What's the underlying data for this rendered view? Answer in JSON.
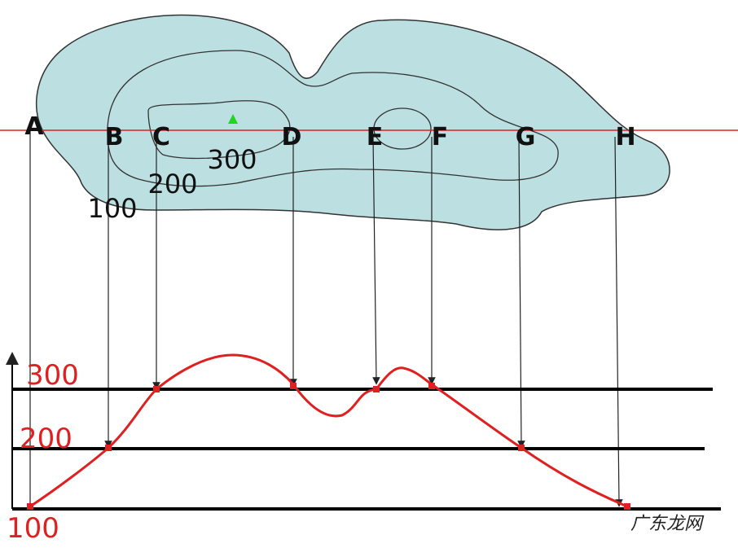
{
  "points": [
    "A",
    "B",
    "C",
    "D",
    "E",
    "F",
    "G",
    "H"
  ],
  "contour_labels": [
    "100",
    "200",
    "300"
  ],
  "profile_labels": [
    "300",
    "200",
    "100"
  ],
  "watermark": "广东龙网"
}
